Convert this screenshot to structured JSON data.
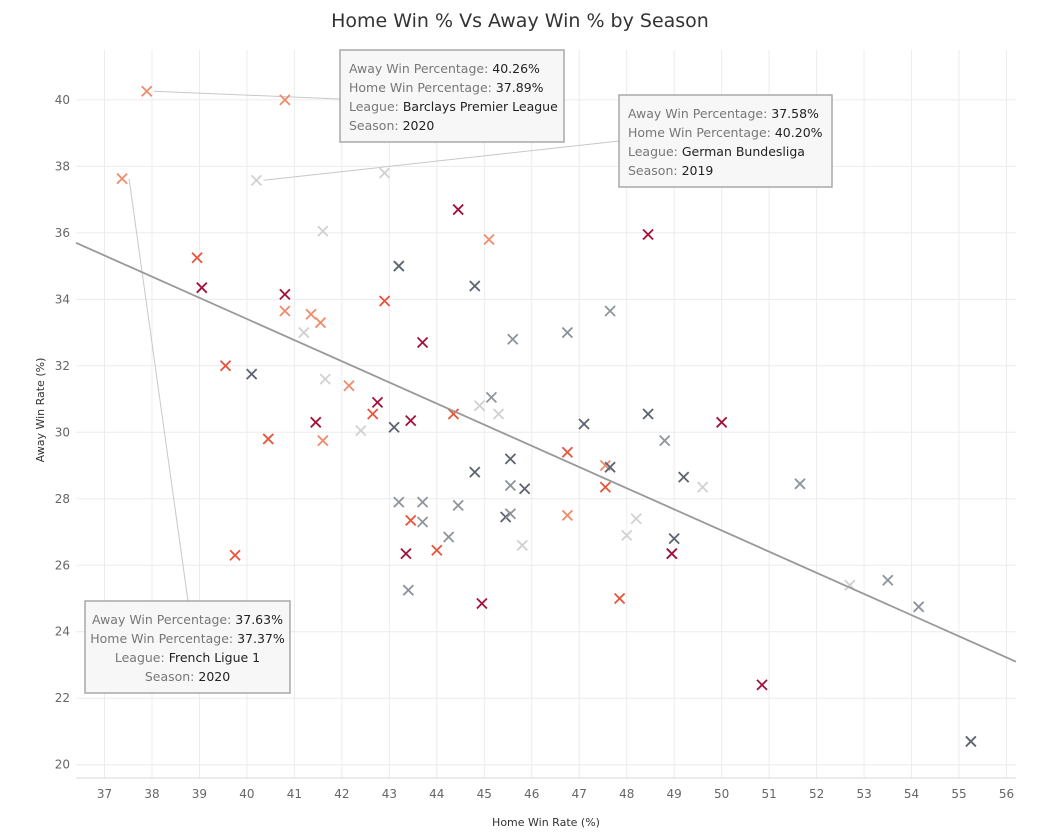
{
  "chart_data": {
    "type": "scatter",
    "title": "Home Win % Vs Away Win % by Season",
    "xlabel": "Home Win Rate (%)",
    "ylabel": "Away Win Rate (%)",
    "xlim": [
      36.4,
      56.2
    ],
    "ylim": [
      19.6,
      41.5
    ],
    "x_ticks": [
      37,
      38,
      39,
      40,
      41,
      42,
      43,
      44,
      45,
      46,
      47,
      48,
      49,
      50,
      51,
      52,
      53,
      54,
      55,
      56
    ],
    "y_ticks": [
      20,
      22,
      24,
      26,
      28,
      30,
      32,
      34,
      36,
      38,
      40
    ],
    "grid": true,
    "marker": "x",
    "season_colors": {
      "2016": "#5c6370",
      "2017": "#8e949b",
      "2018": "#cfd1d3",
      "2019": "#a2123a",
      "2020": "#e8543a",
      "2021": "#ef8a6c"
    },
    "points": [
      {
        "x": 37.89,
        "y": 40.26,
        "season": "2021"
      },
      {
        "x": 40.8,
        "y": 40.0,
        "season": "2021"
      },
      {
        "x": 37.37,
        "y": 37.63,
        "season": "2021"
      },
      {
        "x": 40.2,
        "y": 37.58,
        "season": "2018"
      },
      {
        "x": 42.9,
        "y": 37.8,
        "season": "2018"
      },
      {
        "x": 44.45,
        "y": 36.7,
        "season": "2019"
      },
      {
        "x": 41.6,
        "y": 36.05,
        "season": "2018"
      },
      {
        "x": 45.1,
        "y": 35.8,
        "season": "2021"
      },
      {
        "x": 48.45,
        "y": 35.95,
        "season": "2019"
      },
      {
        "x": 38.95,
        "y": 35.25,
        "season": "2020"
      },
      {
        "x": 43.2,
        "y": 35.0,
        "season": "2016"
      },
      {
        "x": 39.05,
        "y": 34.35,
        "season": "2019"
      },
      {
        "x": 40.8,
        "y": 34.15,
        "season": "2019"
      },
      {
        "x": 44.8,
        "y": 34.4,
        "season": "2016"
      },
      {
        "x": 42.9,
        "y": 33.95,
        "season": "2020"
      },
      {
        "x": 40.8,
        "y": 33.65,
        "season": "2021"
      },
      {
        "x": 41.35,
        "y": 33.55,
        "season": "2021"
      },
      {
        "x": 41.55,
        "y": 33.3,
        "season": "2021"
      },
      {
        "x": 47.65,
        "y": 33.65,
        "season": "2017"
      },
      {
        "x": 41.2,
        "y": 33.0,
        "season": "2018"
      },
      {
        "x": 46.75,
        "y": 33.0,
        "season": "2017"
      },
      {
        "x": 43.7,
        "y": 32.7,
        "season": "2019"
      },
      {
        "x": 45.6,
        "y": 32.8,
        "season": "2017"
      },
      {
        "x": 39.55,
        "y": 32.0,
        "season": "2020"
      },
      {
        "x": 40.1,
        "y": 31.75,
        "season": "2016"
      },
      {
        "x": 41.65,
        "y": 31.6,
        "season": "2018"
      },
      {
        "x": 42.15,
        "y": 31.4,
        "season": "2021"
      },
      {
        "x": 42.75,
        "y": 30.9,
        "season": "2019"
      },
      {
        "x": 44.9,
        "y": 30.8,
        "season": "2018"
      },
      {
        "x": 45.15,
        "y": 31.05,
        "season": "2017"
      },
      {
        "x": 42.65,
        "y": 30.55,
        "season": "2020"
      },
      {
        "x": 45.3,
        "y": 30.55,
        "season": "2018"
      },
      {
        "x": 44.35,
        "y": 30.55,
        "season": "2020"
      },
      {
        "x": 41.45,
        "y": 30.3,
        "season": "2019"
      },
      {
        "x": 43.45,
        "y": 30.35,
        "season": "2019"
      },
      {
        "x": 43.1,
        "y": 30.15,
        "season": "2016"
      },
      {
        "x": 42.4,
        "y": 30.05,
        "season": "2018"
      },
      {
        "x": 47.1,
        "y": 30.25,
        "season": "2016"
      },
      {
        "x": 48.45,
        "y": 30.55,
        "season": "2016"
      },
      {
        "x": 50.0,
        "y": 30.3,
        "season": "2019"
      },
      {
        "x": 40.45,
        "y": 29.8,
        "season": "2020"
      },
      {
        "x": 41.6,
        "y": 29.75,
        "season": "2021"
      },
      {
        "x": 48.8,
        "y": 29.75,
        "season": "2017"
      },
      {
        "x": 45.55,
        "y": 29.2,
        "season": "2016"
      },
      {
        "x": 46.75,
        "y": 29.4,
        "season": "2020"
      },
      {
        "x": 47.55,
        "y": 29.0,
        "season": "2021"
      },
      {
        "x": 47.65,
        "y": 28.95,
        "season": "2016"
      },
      {
        "x": 44.8,
        "y": 28.8,
        "season": "2016"
      },
      {
        "x": 49.2,
        "y": 28.65,
        "season": "2016"
      },
      {
        "x": 45.55,
        "y": 28.4,
        "season": "2017"
      },
      {
        "x": 45.85,
        "y": 28.3,
        "season": "2016"
      },
      {
        "x": 47.55,
        "y": 28.35,
        "season": "2020"
      },
      {
        "x": 49.6,
        "y": 28.35,
        "season": "2018"
      },
      {
        "x": 51.65,
        "y": 28.45,
        "season": "2017"
      },
      {
        "x": 43.2,
        "y": 27.9,
        "season": "2017"
      },
      {
        "x": 43.7,
        "y": 27.9,
        "season": "2017"
      },
      {
        "x": 44.45,
        "y": 27.8,
        "season": "2017"
      },
      {
        "x": 45.45,
        "y": 27.45,
        "season": "2016"
      },
      {
        "x": 45.55,
        "y": 27.55,
        "season": "2017"
      },
      {
        "x": 46.75,
        "y": 27.5,
        "season": "2021"
      },
      {
        "x": 43.45,
        "y": 27.35,
        "season": "2020"
      },
      {
        "x": 43.7,
        "y": 27.3,
        "season": "2017"
      },
      {
        "x": 48.2,
        "y": 27.4,
        "season": "2018"
      },
      {
        "x": 44.25,
        "y": 26.85,
        "season": "2017"
      },
      {
        "x": 45.8,
        "y": 26.6,
        "season": "2018"
      },
      {
        "x": 48.0,
        "y": 26.9,
        "season": "2018"
      },
      {
        "x": 49.0,
        "y": 26.8,
        "season": "2016"
      },
      {
        "x": 43.35,
        "y": 26.35,
        "season": "2019"
      },
      {
        "x": 44.0,
        "y": 26.45,
        "season": "2020"
      },
      {
        "x": 48.95,
        "y": 26.35,
        "season": "2016"
      },
      {
        "x": 48.95,
        "y": 26.35,
        "season": "2019"
      },
      {
        "x": 39.75,
        "y": 26.3,
        "season": "2020"
      },
      {
        "x": 43.4,
        "y": 25.25,
        "season": "2017"
      },
      {
        "x": 52.7,
        "y": 25.4,
        "season": "2018"
      },
      {
        "x": 53.5,
        "y": 25.55,
        "season": "2017"
      },
      {
        "x": 47.85,
        "y": 25.0,
        "season": "2020"
      },
      {
        "x": 44.95,
        "y": 24.85,
        "season": "2019"
      },
      {
        "x": 54.15,
        "y": 24.75,
        "season": "2017"
      },
      {
        "x": 50.85,
        "y": 22.4,
        "season": "2019"
      },
      {
        "x": 55.25,
        "y": 20.7,
        "season": "2016"
      }
    ],
    "trend_line": {
      "x": [
        36.4,
        56.2
      ],
      "y": [
        35.7,
        23.1
      ],
      "color": "#999999"
    },
    "annotations": [
      {
        "anchor": {
          "x": 37.89,
          "y": 40.26
        },
        "lines": [
          {
            "key": "Away Win Percentage:",
            "value": "40.26%"
          },
          {
            "key": "Home Win Percentage:",
            "value": "37.89%"
          },
          {
            "key": "League:",
            "value": "Barclays Premier League"
          },
          {
            "key": "Season:",
            "value": "2020"
          }
        ]
      },
      {
        "anchor": {
          "x": 40.2,
          "y": 37.58
        },
        "lines": [
          {
            "key": "Away Win Percentage:",
            "value": "37.58%"
          },
          {
            "key": "Home Win Percentage:",
            "value": "40.20%"
          },
          {
            "key": "League:",
            "value": "German Bundesliga"
          },
          {
            "key": "Season:",
            "value": "2019"
          }
        ]
      },
      {
        "anchor": {
          "x": 37.37,
          "y": 37.63
        },
        "lines": [
          {
            "key": "Away Win Percentage:",
            "value": "37.63%"
          },
          {
            "key": "Home Win Percentage:",
            "value": "37.37%"
          },
          {
            "key": "League:",
            "value": "French Ligue 1"
          },
          {
            "key": "Season:",
            "value": "2020"
          }
        ]
      }
    ]
  }
}
